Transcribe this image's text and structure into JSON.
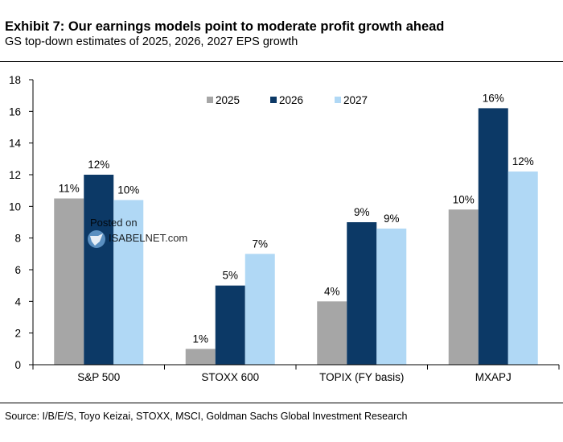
{
  "title": "Exhibit 7: Our earnings models point to moderate profit growth ahead",
  "subtitle": "GS top-down estimates of 2025, 2026, 2027 EPS growth",
  "source": "Source: I/B/E/S, Toyo Keizai, STOXX, MSCI, Goldman Sachs Global Investment Research",
  "watermark": {
    "line1": "Posted on",
    "line2": "ISABELNET.com"
  },
  "colors": {
    "2025": "#a6a6a6",
    "2026": "#0c3966",
    "2027": "#b0d8f5"
  },
  "chart_data": {
    "type": "bar",
    "title": "Exhibit 7: Our earnings models point to moderate profit growth ahead",
    "xlabel": "",
    "ylabel": "",
    "ylim": [
      0,
      18
    ],
    "yticks": [
      "0",
      "2",
      "4",
      "6",
      "8",
      "10",
      "12",
      "14",
      "16",
      "18"
    ],
    "categories": [
      "S&P 500",
      "STOXX 600",
      "TOPIX (FY basis)",
      "MXAPJ"
    ],
    "legend_position": "top-center",
    "series": [
      {
        "name": "2025",
        "values": [
          10.5,
          1.0,
          4.0,
          9.8
        ],
        "labels": [
          "11%",
          "1%",
          "4%",
          "10%"
        ]
      },
      {
        "name": "2026",
        "values": [
          12.0,
          5.0,
          9.0,
          16.2
        ],
        "labels": [
          "12%",
          "5%",
          "9%",
          "16%"
        ]
      },
      {
        "name": "2027",
        "values": [
          10.4,
          7.0,
          8.6,
          12.2
        ],
        "labels": [
          "10%",
          "7%",
          "9%",
          "12%"
        ]
      }
    ]
  }
}
